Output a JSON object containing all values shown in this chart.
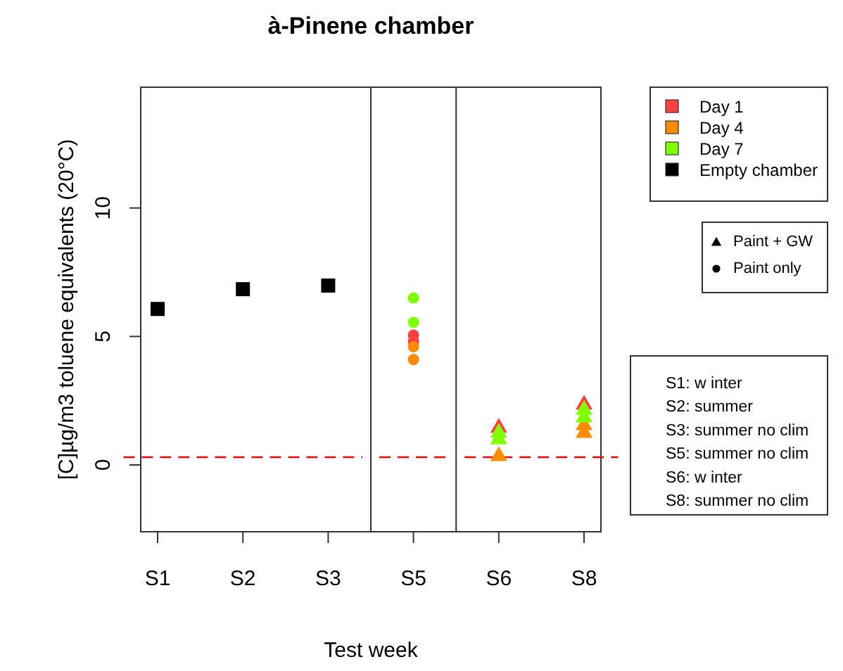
{
  "chart_data": {
    "type": "scatter",
    "title": "à-Pinene chamber",
    "xlabel": "Test week",
    "ylabel": "[C]µg/m3 toluene equivalents (20°C)",
    "categories": [
      "S1",
      "S2",
      "S3",
      "S5",
      "S6",
      "S8"
    ],
    "ylim": [
      -2.6,
      14.7
    ],
    "yticks": [
      0,
      5,
      10
    ],
    "legend": "right",
    "grid": false,
    "series": [
      {
        "name": "Day 1",
        "color": "#ff4040",
        "marker": "circle",
        "x": [
          "S5",
          "S5"
        ],
        "values": [
          5.05,
          4.8
        ]
      },
      {
        "name": "Day 4",
        "color": "#ff8c00",
        "marker": "circle",
        "x": [
          "S5",
          "S5"
        ],
        "values": [
          4.6,
          4.1
        ]
      },
      {
        "name": "Day 7",
        "color": "#80ff00",
        "marker": "circle",
        "x": [
          "S5",
          "S5"
        ],
        "values": [
          6.5,
          5.55
        ]
      },
      {
        "name": "Empty chamber",
        "color": "#000000",
        "marker": "square",
        "x": [
          "S1",
          "S2",
          "S3"
        ],
        "values": [
          6.07,
          6.84,
          6.98
        ]
      },
      {
        "color": "#ff4040",
        "marker": "triangle",
        "x": [
          "S6",
          "S8"
        ],
        "values": [
          1.5,
          2.4
        ]
      },
      {
        "color": "#ff8c00",
        "marker": "triangle",
        "x": [
          "S6",
          "S8",
          "S8"
        ],
        "values": [
          0.4,
          1.6,
          1.3
        ]
      },
      {
        "color": "#80ff00",
        "marker": "triangle",
        "x": [
          "S6",
          "S6",
          "S8",
          "S8"
        ],
        "values": [
          1.3,
          1.05,
          2.2,
          1.9
        ]
      }
    ],
    "ref_lines": [
      {
        "axis": "y",
        "value": 0.3,
        "color": "#ff0000",
        "line_style": "dashed"
      }
    ],
    "annotations": [
      "Paint + GW",
      "Paint only",
      "S1: w inter",
      "S2: summer",
      "S3: summer no clim",
      "S5: summer no clim",
      "S6: w inter",
      "S8: summer no clim"
    ]
  }
}
